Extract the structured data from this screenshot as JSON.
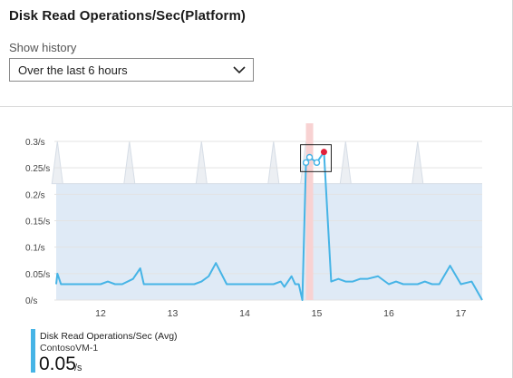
{
  "title": "Disk Read Operations/Sec(Platform)",
  "history": {
    "label": "Show history",
    "selected": "Over the last 6 hours"
  },
  "icons": {
    "dropdown": "chevron-down-icon"
  },
  "colors": {
    "line": "#46b4e6",
    "area": "#dfeaf6",
    "spike_area": "#eceff3",
    "cursor_band": "#f8d2d2",
    "cursor_line": "#e6a5a5",
    "cursor_point": "#e0203c",
    "legend_bar": "#46b4e6"
  },
  "chart_data": {
    "type": "line",
    "title": "Disk Read Operations/Sec(Platform)",
    "xlabel": "",
    "ylabel": "",
    "x_ticks": [
      "12",
      "13",
      "14",
      "15",
      "16",
      "17"
    ],
    "y_ticks": [
      "0.3/s",
      "0.25/s",
      "0.2/s",
      "0.15/s",
      "0.1/s",
      "0.05/s",
      "0/s"
    ],
    "xlim": [
      11.35,
      17.3
    ],
    "ylim": [
      0,
      0.3
    ],
    "grid": true,
    "series": [
      {
        "name": "Disk Read Operations/Sec (Avg)",
        "x": [
          11.35,
          11.4,
          11.45,
          11.55,
          11.7,
          11.85,
          12.0,
          12.1,
          12.2,
          12.3,
          12.45,
          12.55,
          12.6,
          12.75,
          12.9,
          13.05,
          13.2,
          13.3,
          13.4,
          13.5,
          13.6,
          13.75,
          13.9,
          14.05,
          14.2,
          14.3,
          14.4,
          14.5,
          14.55,
          14.65,
          14.7,
          14.75,
          14.8,
          14.85,
          14.9,
          15.0,
          15.1,
          15.2,
          15.3,
          15.4,
          15.5,
          15.6,
          15.7,
          15.85,
          16.0,
          16.1,
          16.2,
          16.3,
          16.4,
          16.5,
          16.6,
          16.7,
          16.85,
          17.0,
          17.15,
          17.3
        ],
        "values": [
          0.03,
          0.05,
          0.03,
          0.03,
          0.03,
          0.03,
          0.03,
          0.035,
          0.03,
          0.03,
          0.04,
          0.06,
          0.03,
          0.03,
          0.03,
          0.03,
          0.03,
          0.03,
          0.035,
          0.045,
          0.07,
          0.03,
          0.03,
          0.03,
          0.03,
          0.03,
          0.03,
          0.035,
          0.025,
          0.045,
          0.03,
          0.03,
          0.0,
          0.26,
          0.27,
          0.26,
          0.28,
          0.035,
          0.04,
          0.035,
          0.035,
          0.04,
          0.04,
          0.045,
          0.03,
          0.035,
          0.03,
          0.03,
          0.03,
          0.035,
          0.03,
          0.03,
          0.065,
          0.03,
          0.035,
          0.0
        ],
        "bands": {
          "baseline": 0.22,
          "spikes": [
            0.3,
            0.3,
            0.3,
            0.3,
            0.3,
            0.3,
            0.3,
            0.3,
            0.3,
            0.3,
            0.3
          ]
        }
      }
    ],
    "cursor_x": 14.9
  },
  "legend": {
    "series_label": "Disk Read Operations/Sec (Avg)",
    "resource": "ContosoVM-1",
    "value": "0.05",
    "unit": "/s"
  }
}
